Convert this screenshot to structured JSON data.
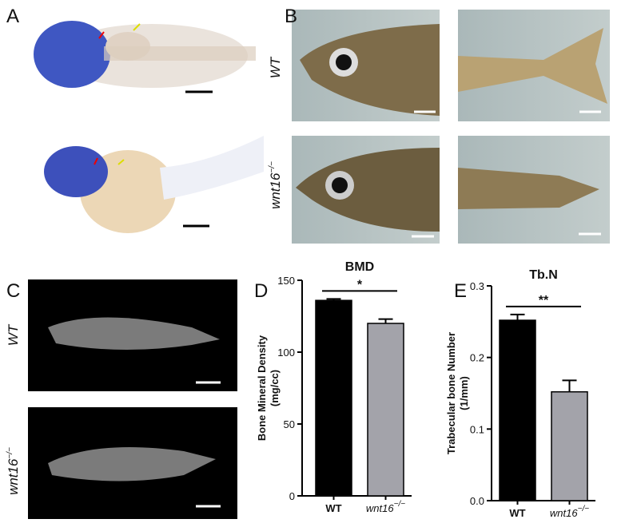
{
  "panels": {
    "A": {
      "letter": "A"
    },
    "B": {
      "letter": "B",
      "rows": [
        {
          "text": "WT"
        },
        {
          "text": "wnt16",
          "sup": "−/−"
        }
      ]
    },
    "C": {
      "letter": "C",
      "rows": [
        {
          "text": "WT"
        },
        {
          "text": "wnt16",
          "sup": "−/−"
        }
      ]
    }
  },
  "chart_data": [
    {
      "type": "bar",
      "panel_label": "D",
      "title": "BMD",
      "ylabel": [
        "Bone Mineral Density",
        "(mg/cc)"
      ],
      "categories": [
        {
          "text": "WT"
        },
        {
          "text": "wnt16",
          "sup": "−/−"
        }
      ],
      "values": [
        136,
        120
      ],
      "errors": [
        1,
        3
      ],
      "colors": [
        "#000000",
        "#a3a3aa"
      ],
      "ylim": [
        0,
        150
      ],
      "yticks": [
        0,
        50,
        100,
        150
      ],
      "significance": "*"
    },
    {
      "type": "bar",
      "panel_label": "E",
      "title": "Tb.N",
      "ylabel": [
        "Trabecular bone Number",
        "(1/mm)"
      ],
      "categories": [
        {
          "text": "WT"
        },
        {
          "text": "wnt16",
          "sup": "−/−"
        }
      ],
      "values": [
        0.252,
        0.152
      ],
      "errors": [
        0.008,
        0.016
      ],
      "colors": [
        "#000000",
        "#a3a3aa"
      ],
      "ylim": [
        0,
        0.3
      ],
      "yticks": [
        {
          "value": 0,
          "label": "0.0"
        },
        0.1,
        0.2,
        0.3
      ],
      "significance": "**"
    }
  ]
}
